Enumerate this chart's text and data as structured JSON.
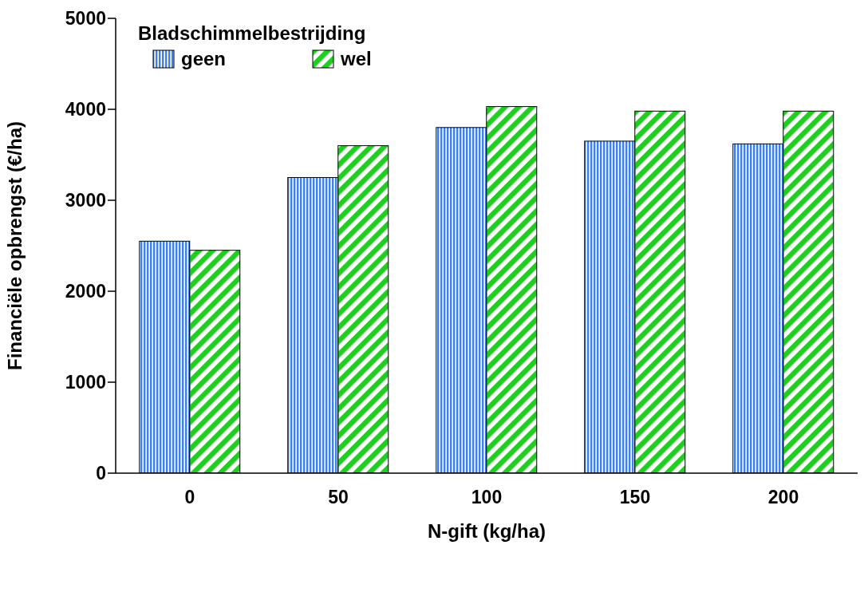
{
  "chart_data": {
    "type": "bar",
    "xlabel": "N-gift (kg/ha)",
    "ylabel": "Financiële opbrengst (€/ha)",
    "legend_title": "Bladschimmelbestrijding",
    "categories": [
      "0",
      "50",
      "100",
      "150",
      "200"
    ],
    "series": [
      {
        "name": "geen",
        "color": "#3f7fe8",
        "values": [
          2550,
          3250,
          3800,
          3650,
          3620
        ]
      },
      {
        "name": "wel",
        "color": "#22cc22",
        "values": [
          2450,
          3600,
          4030,
          3980,
          3980
        ]
      }
    ],
    "ylim": [
      0,
      5000
    ],
    "yticks": [
      0,
      1000,
      2000,
      3000,
      4000,
      5000
    ],
    "grid": false,
    "legend": "top left"
  }
}
